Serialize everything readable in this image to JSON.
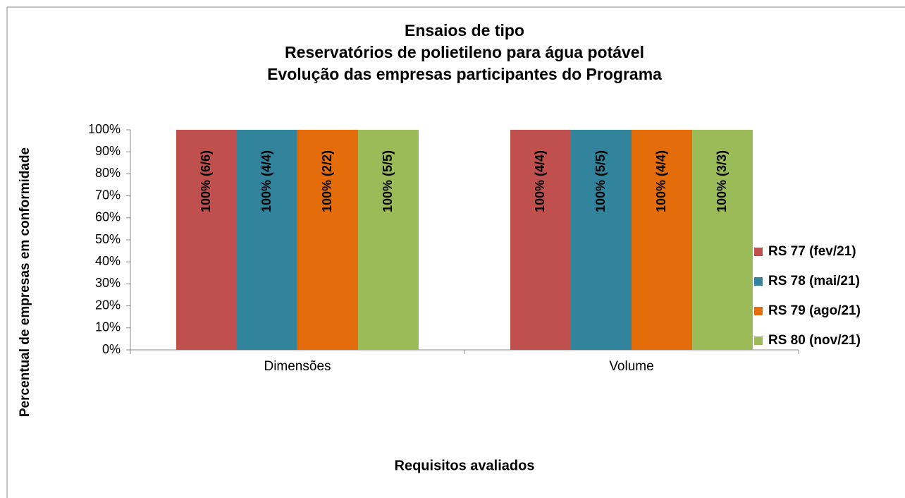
{
  "chart_data": {
    "type": "bar",
    "title": [
      "Ensaios de tipo",
      "Reservatórios de polietileno para água potável",
      "Evolução das empresas participantes do Programa"
    ],
    "x_label": "Requisitos avaliados",
    "y_label": "Percentual de empresas em conformidade",
    "categories": [
      "Dimensões",
      "Volume"
    ],
    "series": [
      {
        "name": "RS 77 (fev/21)",
        "color": "#c0504d",
        "values": [
          100,
          100
        ],
        "value_labels": [
          "100% (6/6)",
          "100% (4/4)"
        ]
      },
      {
        "name": "RS 78 (mai/21)",
        "color": "#31849b",
        "values": [
          100,
          100
        ],
        "value_labels": [
          "100% (4/4)",
          "100% (5/5)"
        ]
      },
      {
        "name": "RS 79 (ago/21)",
        "color": "#e46c0a",
        "values": [
          100,
          100
        ],
        "value_labels": [
          "100% (2/2)",
          "100% (4/4)"
        ]
      },
      {
        "name": "RS 80 (nov/21)",
        "color": "#9bbb59",
        "values": [
          100,
          100
        ],
        "value_labels": [
          "100% (5/5)",
          "100% (3/3)"
        ]
      }
    ],
    "ylim": [
      0,
      100
    ],
    "yticks": [
      {
        "value": 0,
        "label": "0%"
      },
      {
        "value": 10,
        "label": "10%"
      },
      {
        "value": 20,
        "label": "20%"
      },
      {
        "value": 30,
        "label": "30%"
      },
      {
        "value": 40,
        "label": "40%"
      },
      {
        "value": 50,
        "label": "50%"
      },
      {
        "value": 60,
        "label": "60%"
      },
      {
        "value": 70,
        "label": "70%"
      },
      {
        "value": 80,
        "label": "80%"
      },
      {
        "value": 90,
        "label": "90%"
      },
      {
        "value": 100,
        "label": "100%"
      }
    ],
    "legend": "right"
  }
}
